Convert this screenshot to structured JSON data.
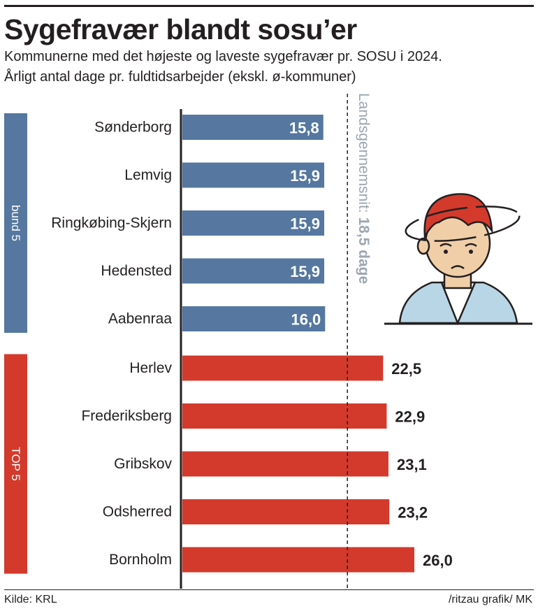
{
  "title": "Sygefravær blandt sosu’er",
  "subtitle_line1": "Kommunerne med det højeste og laveste sygefravær pr. SOSU i 2024.",
  "subtitle_line2": "Årligt antal dage pr. fuldtidsarbejder (ekskl. ø-kommuner)",
  "source": "Kilde: KRL",
  "credit": "/ritzau grafik/ MK",
  "colors": {
    "bottom": "#5577a0",
    "top": "#d33a2c",
    "reference": "#9aa6b2",
    "text": "#231f20"
  },
  "chart_data": {
    "type": "bar",
    "orientation": "horizontal",
    "categories": [
      "Sønderborg",
      "Lemvig",
      "Ringkøbing-Skjern",
      "Hedensted",
      "Aabenraa",
      "Herlev",
      "Frederiksberg",
      "Gribskov",
      "Odsherred",
      "Bornholm"
    ],
    "values": [
      15.8,
      15.9,
      15.9,
      15.9,
      16.0,
      22.5,
      22.9,
      23.1,
      23.2,
      26.0
    ],
    "value_labels": [
      "15,8",
      "15,9",
      "15,9",
      "15,9",
      "16,0",
      "22,5",
      "22,9",
      "23,1",
      "23,2",
      "26,0"
    ],
    "groups": [
      {
        "label": "bund 5",
        "count": 5,
        "color": "#5577a0"
      },
      {
        "label": "TOP 5",
        "count": 5,
        "color": "#d33a2c"
      }
    ],
    "reference_line": {
      "value": 18.5,
      "label_prefix": "Landsgennemsnit: ",
      "label_value": "18,5 dage",
      "style": "dashed"
    },
    "xlim": [
      0,
      26.0
    ],
    "illustration": "sick-person-icon"
  }
}
